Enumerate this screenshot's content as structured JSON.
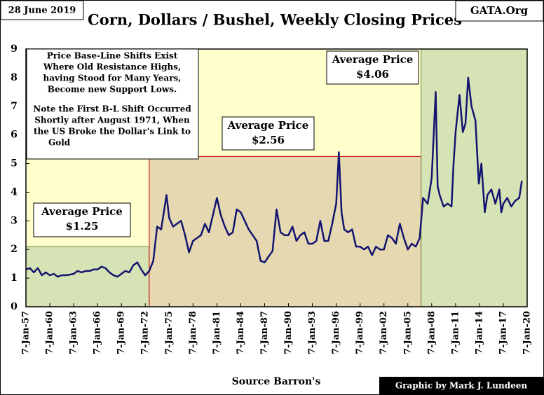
{
  "chart_data": {
    "type": "line",
    "title": "Corn, Dollars / Bushel, Weekly Closing Prices",
    "date": "28 June 2019",
    "site": "GATA.Org",
    "source": "Source Barron's",
    "credit": "Graphic by Mark J. Lundeen",
    "annotation": [
      "Price Base-Line Shifts Exist",
      "Where Old Resistance Highs,",
      "having Stood for Many Years,",
      "Become new Support Lows.",
      "Note the First B-L Shift Occurred",
      "Shortly after August 1971, When",
      "the US Broke the Dollar's Link to",
      "Gold"
    ],
    "regions": [
      {
        "start": "1957-01-07",
        "end": "1972-07-07",
        "top": 2.1,
        "color": "#d6e3b5",
        "border": "#6b8e3a",
        "label": [
          "Average Price",
          "$1.25"
        ]
      },
      {
        "start": "1972-07-07",
        "end": "2006-09-07",
        "top": 5.25,
        "color": "#e6d9b2",
        "border": "#cc0000",
        "label": [
          "Average Price",
          "$2.56"
        ]
      },
      {
        "start": "2006-09-07",
        "end": "2020-01-07",
        "top": 9,
        "color": "#d6e3b5",
        "border": "#6b8e3a",
        "label": [
          "Average Price",
          "$4.06"
        ]
      }
    ],
    "background": "#ffffcc",
    "series": [
      {
        "name": "Corn",
        "color": "#141470",
        "x": [
          "1957-01-07",
          "1957-07-07",
          "1958-01-07",
          "1958-07-07",
          "1959-01-07",
          "1959-07-07",
          "1960-01-07",
          "1960-07-07",
          "1961-01-07",
          "1961-07-07",
          "1962-01-07",
          "1962-07-07",
          "1963-01-07",
          "1963-07-07",
          "1964-01-07",
          "1964-07-07",
          "1965-01-07",
          "1965-07-07",
          "1966-01-07",
          "1966-07-07",
          "1967-01-07",
          "1967-07-07",
          "1968-01-07",
          "1968-07-07",
          "1969-01-07",
          "1969-07-07",
          "1970-01-07",
          "1970-07-07",
          "1971-01-07",
          "1971-07-07",
          "1972-01-07",
          "1972-07-07",
          "1973-01-07",
          "1973-07-07",
          "1974-01-07",
          "1974-09-07",
          "1975-01-07",
          "1975-07-07",
          "1976-01-07",
          "1976-07-07",
          "1977-01-07",
          "1977-07-07",
          "1978-01-07",
          "1978-07-07",
          "1979-01-07",
          "1979-07-07",
          "1980-01-07",
          "1980-07-07",
          "1981-01-07",
          "1981-07-07",
          "1982-01-07",
          "1982-07-07",
          "1983-01-07",
          "1983-07-07",
          "1984-01-07",
          "1984-07-07",
          "1985-01-07",
          "1985-07-07",
          "1986-01-07",
          "1986-07-07",
          "1987-01-07",
          "1987-07-07",
          "1988-01-07",
          "1988-07-07",
          "1989-01-07",
          "1989-07-07",
          "1990-01-07",
          "1990-07-07",
          "1991-01-07",
          "1991-07-07",
          "1992-01-07",
          "1992-07-07",
          "1993-01-07",
          "1993-07-07",
          "1994-01-07",
          "1994-07-07",
          "1995-01-07",
          "1995-07-07",
          "1996-01-07",
          "1996-05-07",
          "1996-09-07",
          "1997-01-07",
          "1997-07-07",
          "1998-01-07",
          "1998-07-07",
          "1999-01-07",
          "1999-07-07",
          "2000-01-07",
          "2000-07-07",
          "2001-01-07",
          "2001-07-07",
          "2002-01-07",
          "2002-07-07",
          "2003-01-07",
          "2003-07-07",
          "2004-01-07",
          "2004-07-07",
          "2005-01-07",
          "2005-07-07",
          "2006-01-07",
          "2006-07-07",
          "2006-12-07",
          "2007-07-07",
          "2008-01-07",
          "2008-07-07",
          "2008-10-07",
          "2009-01-07",
          "2009-07-07",
          "2010-01-07",
          "2010-07-07",
          "2010-10-07",
          "2011-01-07",
          "2011-07-07",
          "2011-12-07",
          "2012-04-07",
          "2012-08-07",
          "2013-01-07",
          "2013-07-07",
          "2013-12-07",
          "2014-04-07",
          "2014-09-07",
          "2015-01-07",
          "2015-07-07",
          "2016-01-07",
          "2016-07-07",
          "2016-10-07",
          "2017-01-07",
          "2017-07-07",
          "2018-01-07",
          "2018-07-07",
          "2019-01-07",
          "2019-05-07"
        ],
        "values": [
          1.3,
          1.35,
          1.2,
          1.35,
          1.1,
          1.2,
          1.1,
          1.15,
          1.05,
          1.1,
          1.1,
          1.12,
          1.15,
          1.25,
          1.2,
          1.25,
          1.25,
          1.3,
          1.3,
          1.4,
          1.35,
          1.2,
          1.1,
          1.05,
          1.15,
          1.25,
          1.2,
          1.45,
          1.55,
          1.3,
          1.1,
          1.25,
          1.6,
          2.8,
          2.7,
          3.9,
          3.1,
          2.8,
          2.9,
          3.0,
          2.5,
          1.9,
          2.3,
          2.4,
          2.5,
          2.9,
          2.6,
          3.2,
          3.8,
          3.2,
          2.8,
          2.5,
          2.6,
          3.4,
          3.3,
          3.0,
          2.7,
          2.5,
          2.3,
          1.6,
          1.55,
          1.75,
          1.95,
          3.4,
          2.6,
          2.5,
          2.5,
          2.8,
          2.3,
          2.5,
          2.6,
          2.2,
          2.2,
          2.3,
          3.0,
          2.3,
          2.3,
          2.9,
          3.6,
          5.4,
          3.3,
          2.7,
          2.6,
          2.7,
          2.1,
          2.1,
          2.0,
          2.1,
          1.8,
          2.1,
          2.0,
          2.0,
          2.5,
          2.4,
          2.2,
          2.9,
          2.4,
          2.0,
          2.2,
          2.1,
          2.4,
          3.8,
          3.6,
          4.5,
          7.5,
          4.2,
          3.9,
          3.5,
          3.6,
          3.5,
          5.0,
          6.1,
          7.4,
          6.1,
          6.4,
          8.0,
          7.0,
          6.5,
          4.3,
          5.0,
          3.3,
          3.9,
          4.1,
          3.6,
          4.1,
          3.3,
          3.6,
          3.8,
          3.5,
          3.7,
          3.8,
          4.4
        ]
      }
    ],
    "xlim": [
      "1957-01-07",
      "2020-01-07"
    ],
    "xticks": [
      {
        "value": "1957-01-07",
        "label": "7-Jan-57"
      },
      {
        "value": "1960-01-07",
        "label": "7-Jan-60"
      },
      {
        "value": "1963-01-07",
        "label": "7-Jan-63"
      },
      {
        "value": "1966-01-07",
        "label": "7-Jan-66"
      },
      {
        "value": "1969-01-07",
        "label": "7-Jan-69"
      },
      {
        "value": "1972-01-07",
        "label": "7-Jan-72"
      },
      {
        "value": "1975-01-07",
        "label": "7-Jan-75"
      },
      {
        "value": "1978-01-07",
        "label": "7-Jan-78"
      },
      {
        "value": "1981-01-07",
        "label": "7-Jan-81"
      },
      {
        "value": "1984-01-07",
        "label": "7-Jan-84"
      },
      {
        "value": "1987-01-07",
        "label": "7-Jan-87"
      },
      {
        "value": "1990-01-07",
        "label": "7-Jan-90"
      },
      {
        "value": "1993-01-07",
        "label": "7-Jan-93"
      },
      {
        "value": "1996-01-07",
        "label": "7-Jan-96"
      },
      {
        "value": "1999-01-07",
        "label": "7-Jan-99"
      },
      {
        "value": "2002-01-07",
        "label": "7-Jan-02"
      },
      {
        "value": "2005-01-07",
        "label": "7-Jan-05"
      },
      {
        "value": "2008-01-07",
        "label": "7-Jan-08"
      },
      {
        "value": "2011-01-07",
        "label": "7-Jan-11"
      },
      {
        "value": "2014-01-07",
        "label": "7-Jan-14"
      },
      {
        "value": "2017-01-07",
        "label": "7-Jan-17"
      },
      {
        "value": "2020-01-07",
        "label": "7-Jan-20"
      }
    ],
    "ylim": [
      0,
      9
    ],
    "yticks": [
      0,
      1,
      2,
      3,
      4,
      5,
      6,
      7,
      8,
      9
    ],
    "grid": false
  }
}
